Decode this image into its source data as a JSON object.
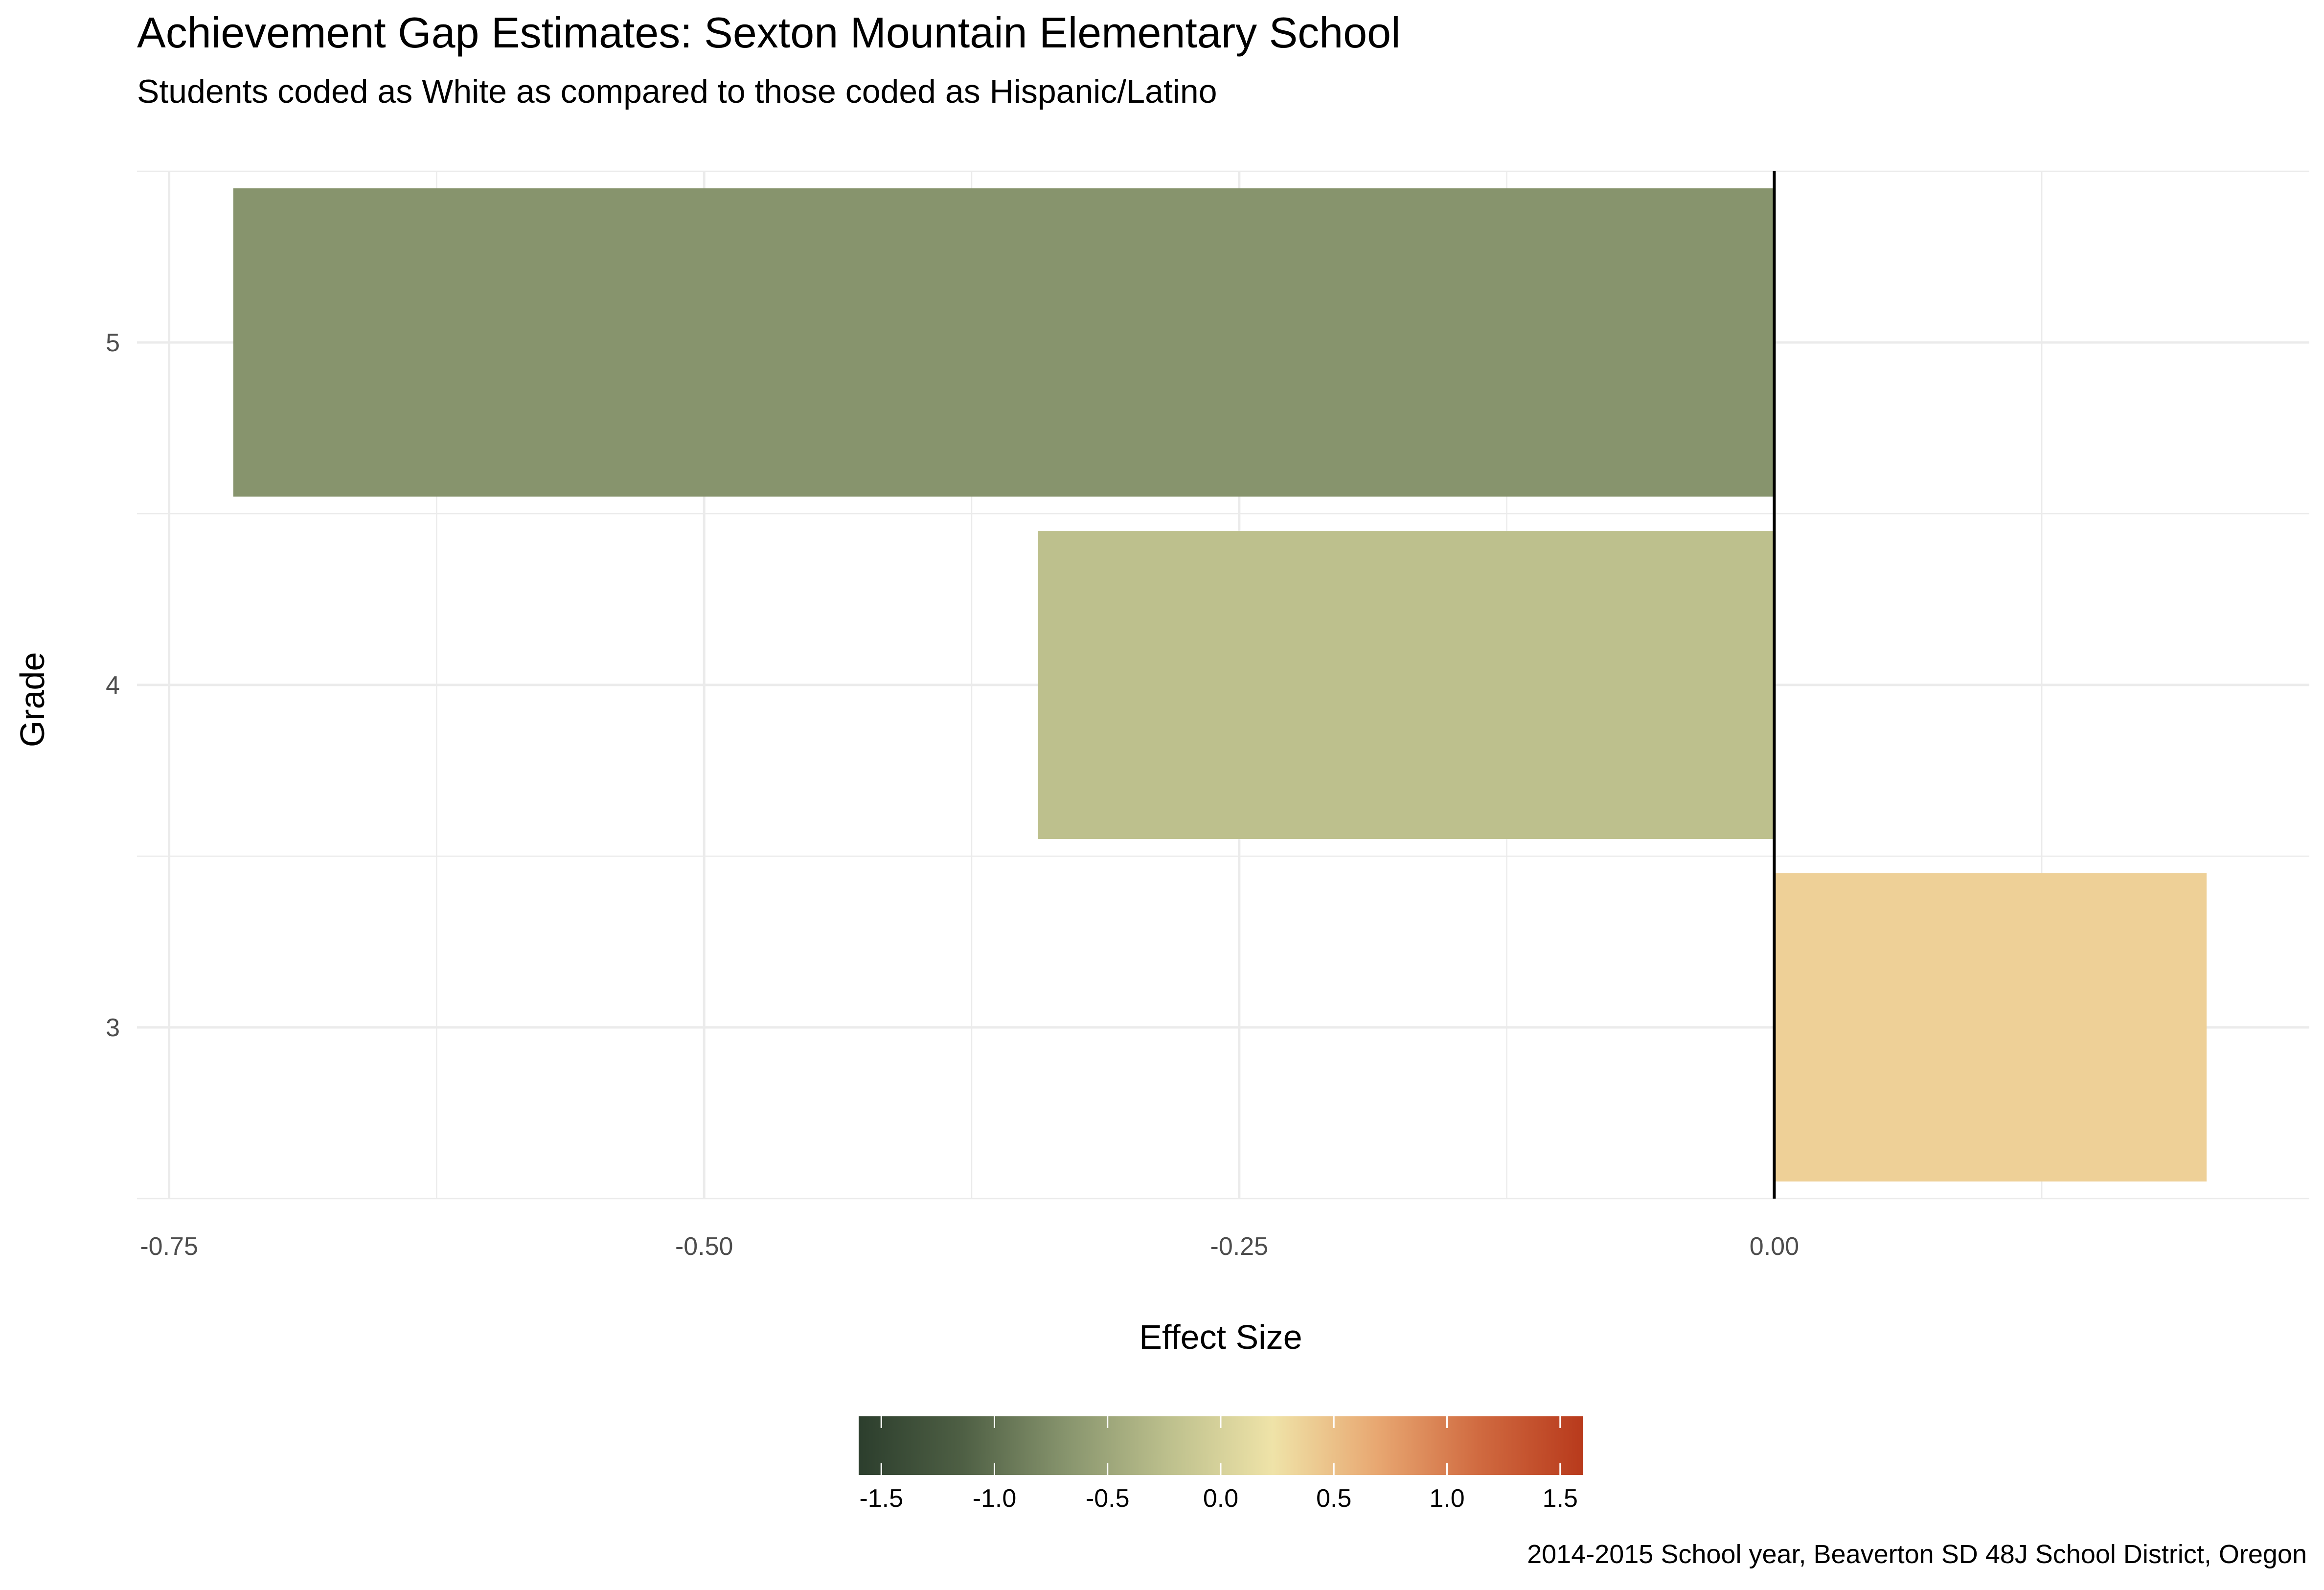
{
  "chart_data": {
    "type": "bar",
    "orientation": "horizontal",
    "title": "Achievement Gap Estimates: Sexton Mountain Elementary School",
    "subtitle": "Students coded as White as compared to those coded as Hispanic/Latino",
    "xlabel": "Effect Size",
    "ylabel": "Grade",
    "categories": [
      "3",
      "4",
      "5"
    ],
    "values": [
      0.202,
      -0.344,
      -0.72
    ],
    "bar_colors": [
      "#eed097",
      "#bdc08d",
      "#87946d"
    ],
    "xlim": [
      -0.765,
      0.25
    ],
    "x_ticks": [
      -0.75,
      -0.5,
      -0.25,
      0.0
    ],
    "x_tick_labels": [
      "-0.75",
      "-0.50",
      "-0.25",
      "0.00"
    ],
    "reference_line": 0,
    "grid": true,
    "legend": {
      "type": "colorbar",
      "placement": "bottom",
      "range": [
        -1.6,
        1.6
      ],
      "ticks": [
        -1.5,
        -1.0,
        -0.5,
        0.0,
        0.5,
        1.0,
        1.5
      ],
      "tick_labels": [
        "-1.5",
        "-1.0",
        "-0.5",
        "0.0",
        "0.5",
        "1.0",
        "1.5"
      ],
      "colors": [
        "#2c3e2d",
        "#4e5f44",
        "#87946d",
        "#bdc08d",
        "#efe3a8",
        "#e8a872",
        "#d06a40",
        "#b83a1c"
      ]
    },
    "caption": "2014-2015 School year, Beaverton SD 48J School District, Oregon"
  }
}
